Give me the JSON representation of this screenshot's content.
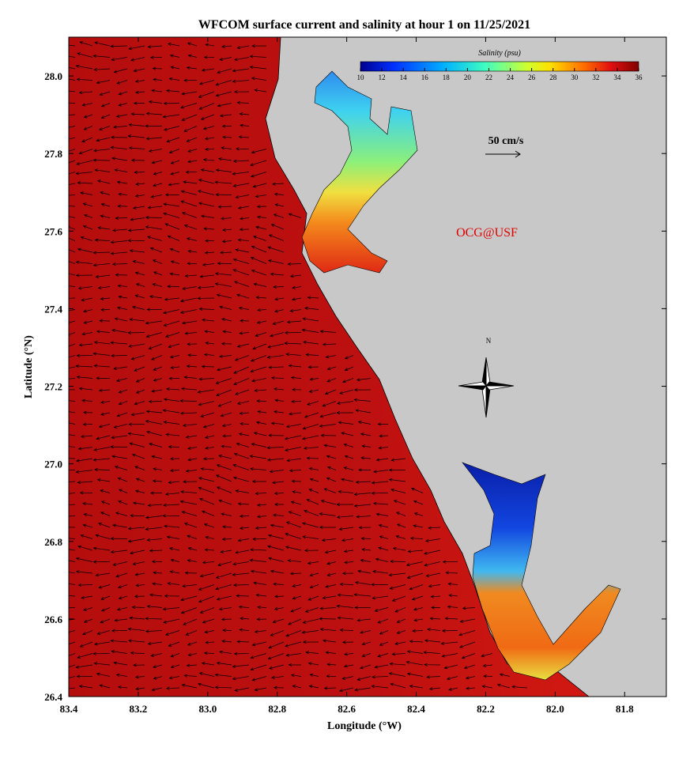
{
  "title": "WFCOM surface current and salinity at hour 1 on 11/25/2021",
  "x_axis": {
    "label": "Longitude (°W)",
    "lim": [
      83.4,
      81.68
    ],
    "ticks": [
      83.4,
      83.2,
      {
        "value": 83.0,
        "label": "83.0"
      },
      82.8,
      82.6,
      82.4,
      82.2,
      {
        "value": 82.0,
        "label": "82.0"
      },
      81.8
    ]
  },
  "y_axis": {
    "label": "Latitude (°N)",
    "lim": [
      26.4,
      28.1
    ],
    "ticks": [
      {
        "value": 26.4,
        "label": "26.4"
      },
      {
        "value": 26.6,
        "label": "26.6"
      },
      {
        "value": 26.8,
        "label": "26.8"
      },
      {
        "value": 27.0,
        "label": "27.0"
      },
      {
        "value": 27.2,
        "label": "27.2"
      },
      {
        "value": 27.4,
        "label": "27.4"
      },
      {
        "value": 27.6,
        "label": "27.6"
      },
      {
        "value": 27.8,
        "label": "27.8"
      },
      {
        "value": 28.0,
        "label": "28.0"
      }
    ]
  },
  "colorbar": {
    "label": "Salinity (psu)",
    "lim": [
      10,
      36
    ],
    "ticks": [
      10,
      12,
      14,
      16,
      18,
      20,
      22,
      24,
      26,
      28,
      30,
      32,
      34,
      36
    ]
  },
  "scale_label": "50 cm/s",
  "watermark": "OCG@USF",
  "compass_label": "N"
}
